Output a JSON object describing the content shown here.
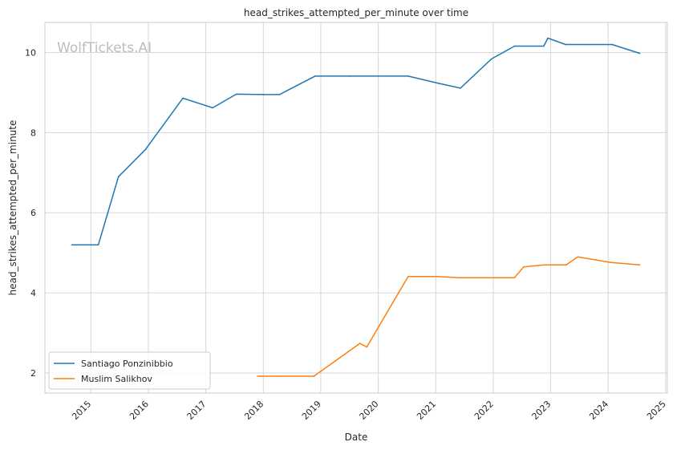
{
  "chart_data": {
    "type": "line",
    "title": "head_strikes_attempted_per_minute over time",
    "xlabel": "Date",
    "ylabel": "head_strikes_attempted_per_minute",
    "watermark": "WolfTickets.AI",
    "x_tick_labels": [
      "2015",
      "2016",
      "2017",
      "2018",
      "2019",
      "2020",
      "2021",
      "2022",
      "2023",
      "2024",
      "2025"
    ],
    "x_tick_values": [
      2015,
      2016,
      2017,
      2018,
      2019,
      2020,
      2021,
      2022,
      2023,
      2024,
      2025
    ],
    "y_tick_labels": [
      "2",
      "4",
      "6",
      "8",
      "10"
    ],
    "y_tick_values": [
      2,
      4,
      6,
      8,
      10
    ],
    "xlim": [
      2014.2,
      2025.03
    ],
    "ylim": [
      1.5,
      10.75
    ],
    "grid": true,
    "legend_position": "lower-left",
    "series": [
      {
        "name": "Santiago Ponzinibbio",
        "color": "#1f77b4",
        "x": [
          2014.67,
          2015.13,
          2015.48,
          2015.95,
          2016.6,
          2017.12,
          2017.53,
          2018.02,
          2018.28,
          2018.9,
          2019.5,
          2020.0,
          2020.52,
          2021.05,
          2021.43,
          2021.97,
          2022.37,
          2022.88,
          2022.95,
          2023.26,
          2023.6,
          2024.07,
          2024.55
        ],
        "y": [
          5.2,
          5.2,
          6.9,
          7.58,
          8.86,
          8.62,
          8.96,
          8.95,
          8.95,
          9.41,
          9.41,
          9.41,
          9.41,
          9.23,
          9.11,
          9.84,
          10.16,
          10.16,
          10.36,
          10.2,
          10.2,
          10.2,
          9.98
        ]
      },
      {
        "name": "Muslim Salikhov",
        "color": "#ff7f0e",
        "x": [
          2017.9,
          2018.3,
          2018.88,
          2019.68,
          2019.8,
          2020.52,
          2021.02,
          2021.43,
          2022.0,
          2022.37,
          2022.53,
          2022.88,
          2023.27,
          2023.47,
          2024.05,
          2024.55
        ],
        "y": [
          1.92,
          1.92,
          1.92,
          2.74,
          2.65,
          4.41,
          4.41,
          4.38,
          4.38,
          4.38,
          4.65,
          4.7,
          4.7,
          4.9,
          4.76,
          4.7
        ]
      }
    ]
  }
}
